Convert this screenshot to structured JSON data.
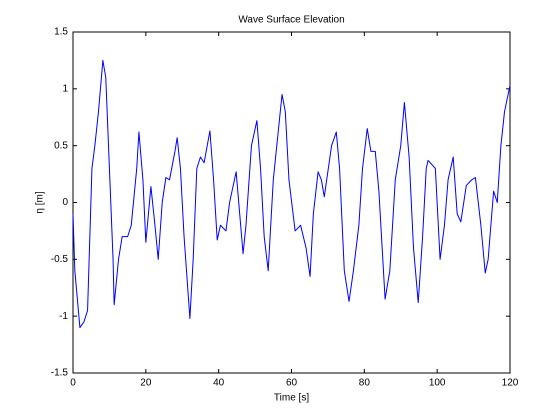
{
  "chart_data": {
    "type": "line",
    "title": "Wave Surface Elevation",
    "xlabel": "Time [s]",
    "ylabel": "η [m]",
    "series": [
      {
        "name": "η",
        "color": "#0000ff",
        "x": [
          0,
          0.5,
          1.9,
          3,
          4,
          5.2,
          6,
          7,
          8.2,
          9,
          10,
          11,
          11.3,
          12.5,
          13.5,
          15,
          16,
          17.5,
          18.1,
          19.2,
          20,
          21.4,
          22.5,
          23.4,
          24.5,
          25.5,
          26.5,
          28,
          28.6,
          29.5,
          30.5,
          32.1,
          33,
          34,
          35,
          36,
          37.6,
          38.6,
          39.6,
          40.5,
          42,
          43,
          44.8,
          46.7,
          47.5,
          49,
          50.5,
          51.5,
          52.5,
          53.6,
          55,
          57.4,
          58.3,
          59.3,
          61,
          62.5,
          64,
          65.1,
          66,
          67.3,
          68.2,
          69,
          71,
          72.3,
          73.2,
          74.5,
          75.8,
          77,
          78.5,
          79.5,
          80.8,
          81.8,
          83,
          84,
          85.7,
          87,
          88.5,
          90,
          91,
          92.3,
          93.5,
          94.8,
          96,
          97,
          97.5,
          99.5,
          100.8,
          102,
          103,
          104.4,
          105.5,
          106.5,
          108,
          109.5,
          110.5,
          112,
          113.2,
          114,
          115.5,
          116.5,
          117.5,
          118.5,
          120
        ],
        "values": [
          -0.1,
          -0.6,
          -1.1,
          -1.05,
          -0.95,
          0.3,
          0.5,
          0.8,
          1.25,
          1.1,
          0.3,
          -0.5,
          -0.9,
          -0.5,
          -0.3,
          -0.3,
          -0.2,
          0.3,
          0.62,
          0.2,
          -0.35,
          0.14,
          -0.2,
          -0.5,
          0.0,
          0.22,
          0.2,
          0.45,
          0.57,
          0.3,
          -0.3,
          -1.02,
          -0.5,
          0.3,
          0.4,
          0.35,
          0.63,
          0.2,
          -0.33,
          -0.2,
          -0.25,
          0,
          0.27,
          -0.45,
          -0.2,
          0.5,
          0.72,
          0.3,
          -0.3,
          -0.6,
          0.2,
          0.95,
          0.8,
          0.2,
          -0.25,
          -0.2,
          -0.4,
          -0.65,
          -0.1,
          0.27,
          0.2,
          0.05,
          0.5,
          0.62,
          0.3,
          -0.6,
          -0.87,
          -0.6,
          -0.2,
          0.3,
          0.65,
          0.45,
          0.45,
          0.1,
          -0.85,
          -0.6,
          0.2,
          0.5,
          0.88,
          0.4,
          -0.4,
          -0.88,
          -0.3,
          0.3,
          0.37,
          0.3,
          -0.5,
          -0.2,
          0.2,
          0.4,
          -0.1,
          -0.17,
          0.15,
          0.2,
          0.22,
          -0.2,
          -0.62,
          -0.5,
          0.1,
          0,
          0.5,
          0.8,
          1.03
        ]
      }
    ],
    "xlim": [
      0,
      120
    ],
    "xticks": [
      0,
      20,
      40,
      60,
      80,
      100,
      120
    ],
    "ylim": [
      -1.5,
      1.5
    ],
    "yticks": [
      -1.5,
      -1,
      -0.5,
      0,
      0.5,
      1,
      1.5
    ]
  }
}
